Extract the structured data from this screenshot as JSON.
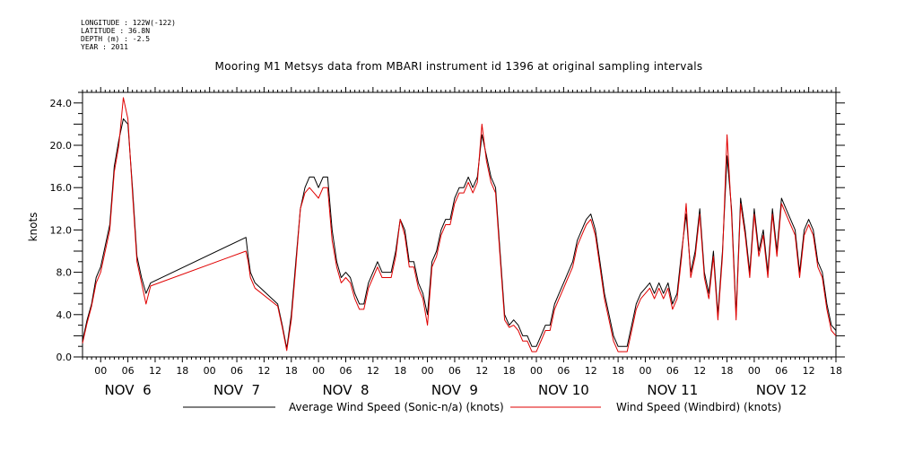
{
  "header": {
    "longitude": "LONGITUDE : 122W(-122)",
    "latitude": "LATITUDE : 36.8N",
    "depth": "DEPTH (m) : -2.5",
    "year": "YEAR : 2011"
  },
  "chart_data": {
    "type": "line",
    "title": "Mooring M1 Metsys data from MBARI instrument id 1396 at original sampling intervals",
    "ylabel": "knots",
    "xlabel": "",
    "ylim": [
      0,
      25
    ],
    "xlim_hours": [
      -4,
      162
    ],
    "yticks": [
      "0.0",
      "4.0",
      "8.0",
      "12.0",
      "16.0",
      "20.0",
      "24.0"
    ],
    "hour_ticks": [
      "00",
      "06",
      "12",
      "18",
      "00",
      "06",
      "12",
      "18",
      "00",
      "06",
      "12",
      "18",
      "00",
      "06",
      "12",
      "18",
      "00",
      "06",
      "12",
      "18",
      "00",
      "06",
      "12",
      "18",
      "00",
      "06",
      "12",
      "18"
    ],
    "day_labels": [
      "NOV  6",
      "NOV  7",
      "NOV  8",
      "NOV  9",
      "NOV 10",
      "NOV 11",
      "NOV 12"
    ],
    "grid": false,
    "legend": "bottom",
    "series": [
      {
        "name": "Average Wind Speed (Sonic-n/a) (knots)",
        "color": "#000000",
        "points": [
          [
            -4,
            1.5
          ],
          [
            -3,
            3.5
          ],
          [
            -2,
            5
          ],
          [
            -1,
            7.5
          ],
          [
            0,
            8.5
          ],
          [
            1,
            10.5
          ],
          [
            2,
            12.5
          ],
          [
            3,
            18
          ],
          [
            4,
            20.5
          ],
          [
            5,
            22.5
          ],
          [
            6,
            22
          ],
          [
            7,
            16
          ],
          [
            8,
            9.5
          ],
          [
            9,
            7.5
          ],
          [
            10,
            6
          ],
          [
            11,
            7
          ],
          [
            32,
            11.3
          ],
          [
            32.5,
            9.5
          ],
          [
            33,
            8
          ],
          [
            34,
            7
          ],
          [
            39,
            5
          ],
          [
            40,
            3
          ],
          [
            41,
            0.8
          ],
          [
            42,
            4
          ],
          [
            43,
            9
          ],
          [
            44,
            14
          ],
          [
            45,
            16
          ],
          [
            46,
            17
          ],
          [
            47,
            17
          ],
          [
            48,
            16
          ],
          [
            49,
            17
          ],
          [
            50,
            17
          ],
          [
            51,
            12
          ],
          [
            52,
            9
          ],
          [
            53,
            7.5
          ],
          [
            54,
            8
          ],
          [
            55,
            7.5
          ],
          [
            56,
            6
          ],
          [
            57,
            5
          ],
          [
            58,
            5
          ],
          [
            59,
            7
          ],
          [
            60,
            8
          ],
          [
            61,
            9
          ],
          [
            62,
            8
          ],
          [
            63,
            8
          ],
          [
            64,
            8
          ],
          [
            65,
            10
          ],
          [
            66,
            13
          ],
          [
            67,
            12
          ],
          [
            68,
            9
          ],
          [
            69,
            9
          ],
          [
            70,
            7
          ],
          [
            71,
            6
          ],
          [
            72,
            4
          ],
          [
            73,
            9
          ],
          [
            74,
            10
          ],
          [
            75,
            12
          ],
          [
            76,
            13
          ],
          [
            77,
            13
          ],
          [
            78,
            15
          ],
          [
            79,
            16
          ],
          [
            80,
            16
          ],
          [
            81,
            17
          ],
          [
            82,
            16
          ],
          [
            83,
            17
          ],
          [
            84,
            21
          ],
          [
            85,
            19
          ],
          [
            86,
            17
          ],
          [
            87,
            16
          ],
          [
            88,
            10
          ],
          [
            89,
            4
          ],
          [
            90,
            3
          ],
          [
            91,
            3.5
          ],
          [
            92,
            3
          ],
          [
            93,
            2
          ],
          [
            94,
            2
          ],
          [
            95,
            1
          ],
          [
            96,
            1
          ],
          [
            97,
            2
          ],
          [
            98,
            3
          ],
          [
            99,
            3
          ],
          [
            100,
            5
          ],
          [
            101,
            6
          ],
          [
            102,
            7
          ],
          [
            103,
            8
          ],
          [
            104,
            9
          ],
          [
            105,
            11
          ],
          [
            106,
            12
          ],
          [
            107,
            13
          ],
          [
            108,
            13.5
          ],
          [
            109,
            12
          ],
          [
            110,
            9
          ],
          [
            111,
            6
          ],
          [
            112,
            4
          ],
          [
            113,
            2
          ],
          [
            114,
            1
          ],
          [
            115,
            1
          ],
          [
            116,
            1
          ],
          [
            117,
            3
          ],
          [
            118,
            5
          ],
          [
            119,
            6
          ],
          [
            120,
            6.5
          ],
          [
            121,
            7
          ],
          [
            122,
            6
          ],
          [
            123,
            7
          ],
          [
            124,
            6
          ],
          [
            125,
            7
          ],
          [
            126,
            5
          ],
          [
            127,
            6
          ],
          [
            128,
            10
          ],
          [
            129,
            13.5
          ],
          [
            130,
            8
          ],
          [
            131,
            10
          ],
          [
            132,
            14
          ],
          [
            133,
            8
          ],
          [
            134,
            6
          ],
          [
            135,
            10
          ],
          [
            136,
            4
          ],
          [
            137,
            10
          ],
          [
            138,
            19
          ],
          [
            139,
            14
          ],
          [
            140,
            4
          ],
          [
            141,
            15
          ],
          [
            142,
            12
          ],
          [
            143,
            8
          ],
          [
            144,
            14
          ],
          [
            145,
            10
          ],
          [
            146,
            12
          ],
          [
            147,
            8
          ],
          [
            148,
            14
          ],
          [
            149,
            10
          ],
          [
            150,
            15
          ],
          [
            151,
            14
          ],
          [
            152,
            13
          ],
          [
            153,
            12
          ],
          [
            154,
            8
          ],
          [
            155,
            12
          ],
          [
            156,
            13
          ],
          [
            157,
            12
          ],
          [
            158,
            9
          ],
          [
            159,
            8
          ],
          [
            160,
            5
          ],
          [
            161,
            3
          ],
          [
            162,
            2.5
          ]
        ]
      },
      {
        "name": "Wind Speed (Windbird) (knots)",
        "color": "#e00000",
        "points": [
          [
            -4,
            1.3
          ],
          [
            -3,
            3.2
          ],
          [
            -2,
            4.8
          ],
          [
            -1,
            7
          ],
          [
            0,
            8
          ],
          [
            1,
            10
          ],
          [
            2,
            12
          ],
          [
            3,
            17.5
          ],
          [
            4,
            20
          ],
          [
            5,
            24.5
          ],
          [
            6,
            22.5
          ],
          [
            7,
            15.5
          ],
          [
            8,
            9
          ],
          [
            9,
            7
          ],
          [
            10,
            5
          ],
          [
            11,
            6.7
          ],
          [
            32,
            10
          ],
          [
            32.5,
            9
          ],
          [
            33,
            7.5
          ],
          [
            34,
            6.5
          ],
          [
            39,
            4.8
          ],
          [
            40,
            2.8
          ],
          [
            41,
            0.6
          ],
          [
            42,
            3.5
          ],
          [
            43,
            8.5
          ],
          [
            44,
            14
          ],
          [
            45,
            15.5
          ],
          [
            46,
            16
          ],
          [
            47,
            15.5
          ],
          [
            48,
            15
          ],
          [
            49,
            16
          ],
          [
            50,
            16
          ],
          [
            51,
            11
          ],
          [
            52,
            8.5
          ],
          [
            53,
            7
          ],
          [
            54,
            7.5
          ],
          [
            55,
            7
          ],
          [
            56,
            5.5
          ],
          [
            57,
            4.5
          ],
          [
            58,
            4.5
          ],
          [
            59,
            6.5
          ],
          [
            60,
            7.5
          ],
          [
            61,
            8.5
          ],
          [
            62,
            7.5
          ],
          [
            63,
            7.5
          ],
          [
            64,
            7.5
          ],
          [
            65,
            9.5
          ],
          [
            66,
            13
          ],
          [
            67,
            11.5
          ],
          [
            68,
            8.5
          ],
          [
            69,
            8.5
          ],
          [
            70,
            6.5
          ],
          [
            71,
            5.5
          ],
          [
            72,
            3
          ],
          [
            73,
            8.5
          ],
          [
            74,
            9.5
          ],
          [
            75,
            11.5
          ],
          [
            76,
            12.5
          ],
          [
            77,
            12.5
          ],
          [
            78,
            14.5
          ],
          [
            79,
            15.5
          ],
          [
            80,
            15.5
          ],
          [
            81,
            16.5
          ],
          [
            82,
            15.5
          ],
          [
            83,
            16.5
          ],
          [
            84,
            22
          ],
          [
            85,
            18.5
          ],
          [
            86,
            16.5
          ],
          [
            87,
            15.5
          ],
          [
            88,
            9.5
          ],
          [
            89,
            3.5
          ],
          [
            90,
            2.8
          ],
          [
            91,
            3
          ],
          [
            92,
            2.5
          ],
          [
            93,
            1.5
          ],
          [
            94,
            1.5
          ],
          [
            95,
            0.5
          ],
          [
            96,
            0.5
          ],
          [
            97,
            1.5
          ],
          [
            98,
            2.5
          ],
          [
            99,
            2.5
          ],
          [
            100,
            4.5
          ],
          [
            101,
            5.5
          ],
          [
            102,
            6.5
          ],
          [
            103,
            7.5
          ],
          [
            104,
            8.5
          ],
          [
            105,
            10.5
          ],
          [
            106,
            11.5
          ],
          [
            107,
            12.5
          ],
          [
            108,
            13
          ],
          [
            109,
            11.5
          ],
          [
            110,
            8.5
          ],
          [
            111,
            5.5
          ],
          [
            112,
            3.5
          ],
          [
            113,
            1.5
          ],
          [
            114,
            0.5
          ],
          [
            115,
            0.5
          ],
          [
            116,
            0.5
          ],
          [
            117,
            2.5
          ],
          [
            118,
            4.5
          ],
          [
            119,
            5.5
          ],
          [
            120,
            6
          ],
          [
            121,
            6.5
          ],
          [
            122,
            5.5
          ],
          [
            123,
            6.5
          ],
          [
            124,
            5.5
          ],
          [
            125,
            6.5
          ],
          [
            126,
            4.5
          ],
          [
            127,
            5.5
          ],
          [
            128,
            9.5
          ],
          [
            129,
            14.5
          ],
          [
            130,
            7.5
          ],
          [
            131,
            9.5
          ],
          [
            132,
            13.5
          ],
          [
            133,
            7.5
          ],
          [
            134,
            5.5
          ],
          [
            135,
            9.5
          ],
          [
            136,
            3.5
          ],
          [
            137,
            9.5
          ],
          [
            138,
            21
          ],
          [
            139,
            13.5
          ],
          [
            140,
            3.5
          ],
          [
            141,
            14.5
          ],
          [
            142,
            11.5
          ],
          [
            143,
            7.5
          ],
          [
            144,
            13.5
          ],
          [
            145,
            9.5
          ],
          [
            146,
            11.5
          ],
          [
            147,
            7.5
          ],
          [
            148,
            13.5
          ],
          [
            149,
            9.5
          ],
          [
            150,
            14.5
          ],
          [
            151,
            13.5
          ],
          [
            152,
            12.5
          ],
          [
            153,
            11.5
          ],
          [
            154,
            7.5
          ],
          [
            155,
            11.5
          ],
          [
            156,
            12.5
          ],
          [
            157,
            11.5
          ],
          [
            158,
            8.5
          ],
          [
            159,
            7.5
          ],
          [
            160,
            4.5
          ],
          [
            161,
            2.5
          ],
          [
            162,
            2
          ]
        ]
      }
    ]
  }
}
